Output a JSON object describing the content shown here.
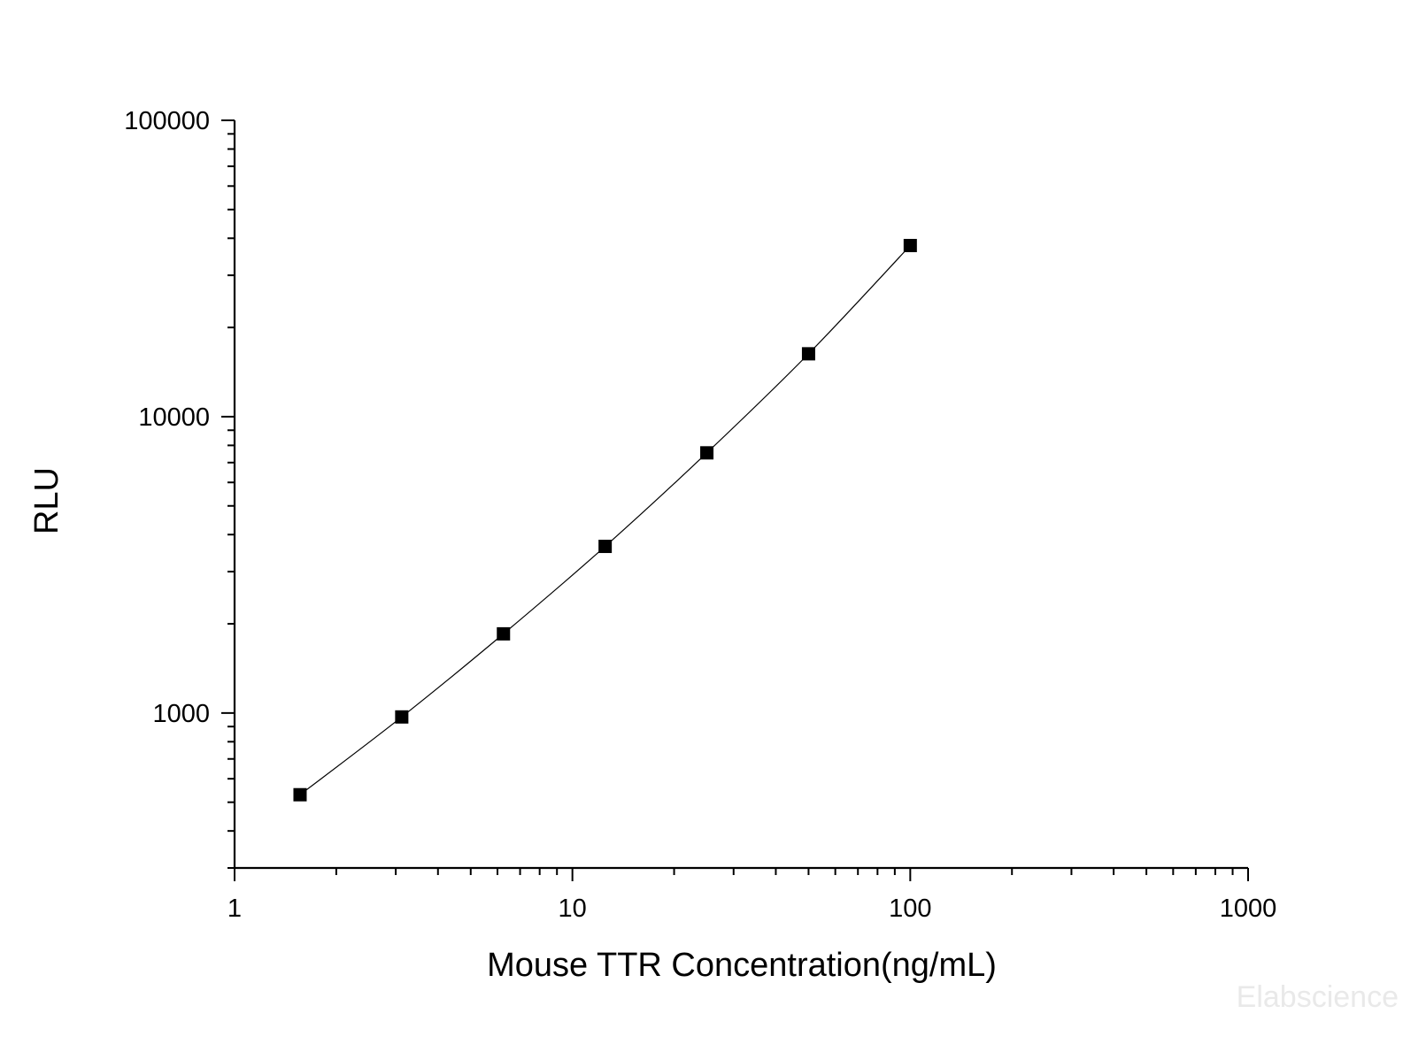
{
  "chart_data": {
    "type": "line",
    "title": "",
    "xlabel": "Mouse TTR Concentration(ng/mL)",
    "ylabel": "RLU",
    "xscale": "log",
    "yscale": "log",
    "xlim": [
      1,
      1000
    ],
    "ylim": [
      300,
      100000
    ],
    "x_ticks": [
      1,
      10,
      100,
      1000
    ],
    "x_tick_labels": [
      "1",
      "10",
      "100",
      "1000"
    ],
    "y_ticks": [
      1000,
      10000,
      100000
    ],
    "y_tick_labels": [
      "1000",
      "10000",
      "100000"
    ],
    "grid": false,
    "legend": "none",
    "marker": "square",
    "color": "#000000",
    "series": [
      {
        "x": [
          1.5625,
          3.125,
          6.25,
          12.5,
          25,
          50,
          100
        ],
        "y": [
          530,
          970,
          1850,
          3650,
          7550,
          16300,
          37800
        ]
      }
    ],
    "watermark": "Elabscience"
  }
}
